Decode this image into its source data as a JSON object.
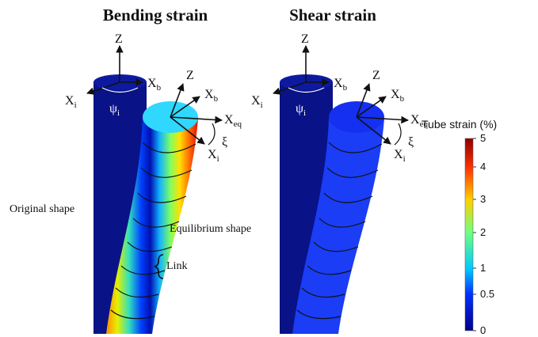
{
  "panels": [
    {
      "title": "Bending strain",
      "z1": "Z",
      "xb1": [
        "X",
        "b"
      ],
      "xi1": [
        "X",
        "i"
      ],
      "psi": [
        "ψ",
        "i"
      ],
      "z2": "Z",
      "xb2": [
        "X",
        "b"
      ],
      "xeq": [
        "X",
        "eq"
      ],
      "xi": "ξ",
      "xi2": [
        "X",
        "i"
      ]
    },
    {
      "title": "Shear strain",
      "z1": "Z",
      "xb1": [
        "X",
        "b"
      ],
      "xi1": [
        "X",
        "i"
      ],
      "psi": [
        "ψ",
        "i"
      ],
      "z2": "Z",
      "xb2": [
        "X",
        "b"
      ],
      "xeq": [
        "X",
        "eq"
      ],
      "xi": "ξ",
      "xi2": [
        "X",
        "i"
      ]
    }
  ],
  "annotations": {
    "original": "Original shape",
    "equilibrium": "Equilibrium shape",
    "link": "Link"
  },
  "colorbar": {
    "title": "Tube strain (%)",
    "ticks": [
      0,
      0.5,
      1,
      2,
      3,
      4,
      5
    ]
  }
}
